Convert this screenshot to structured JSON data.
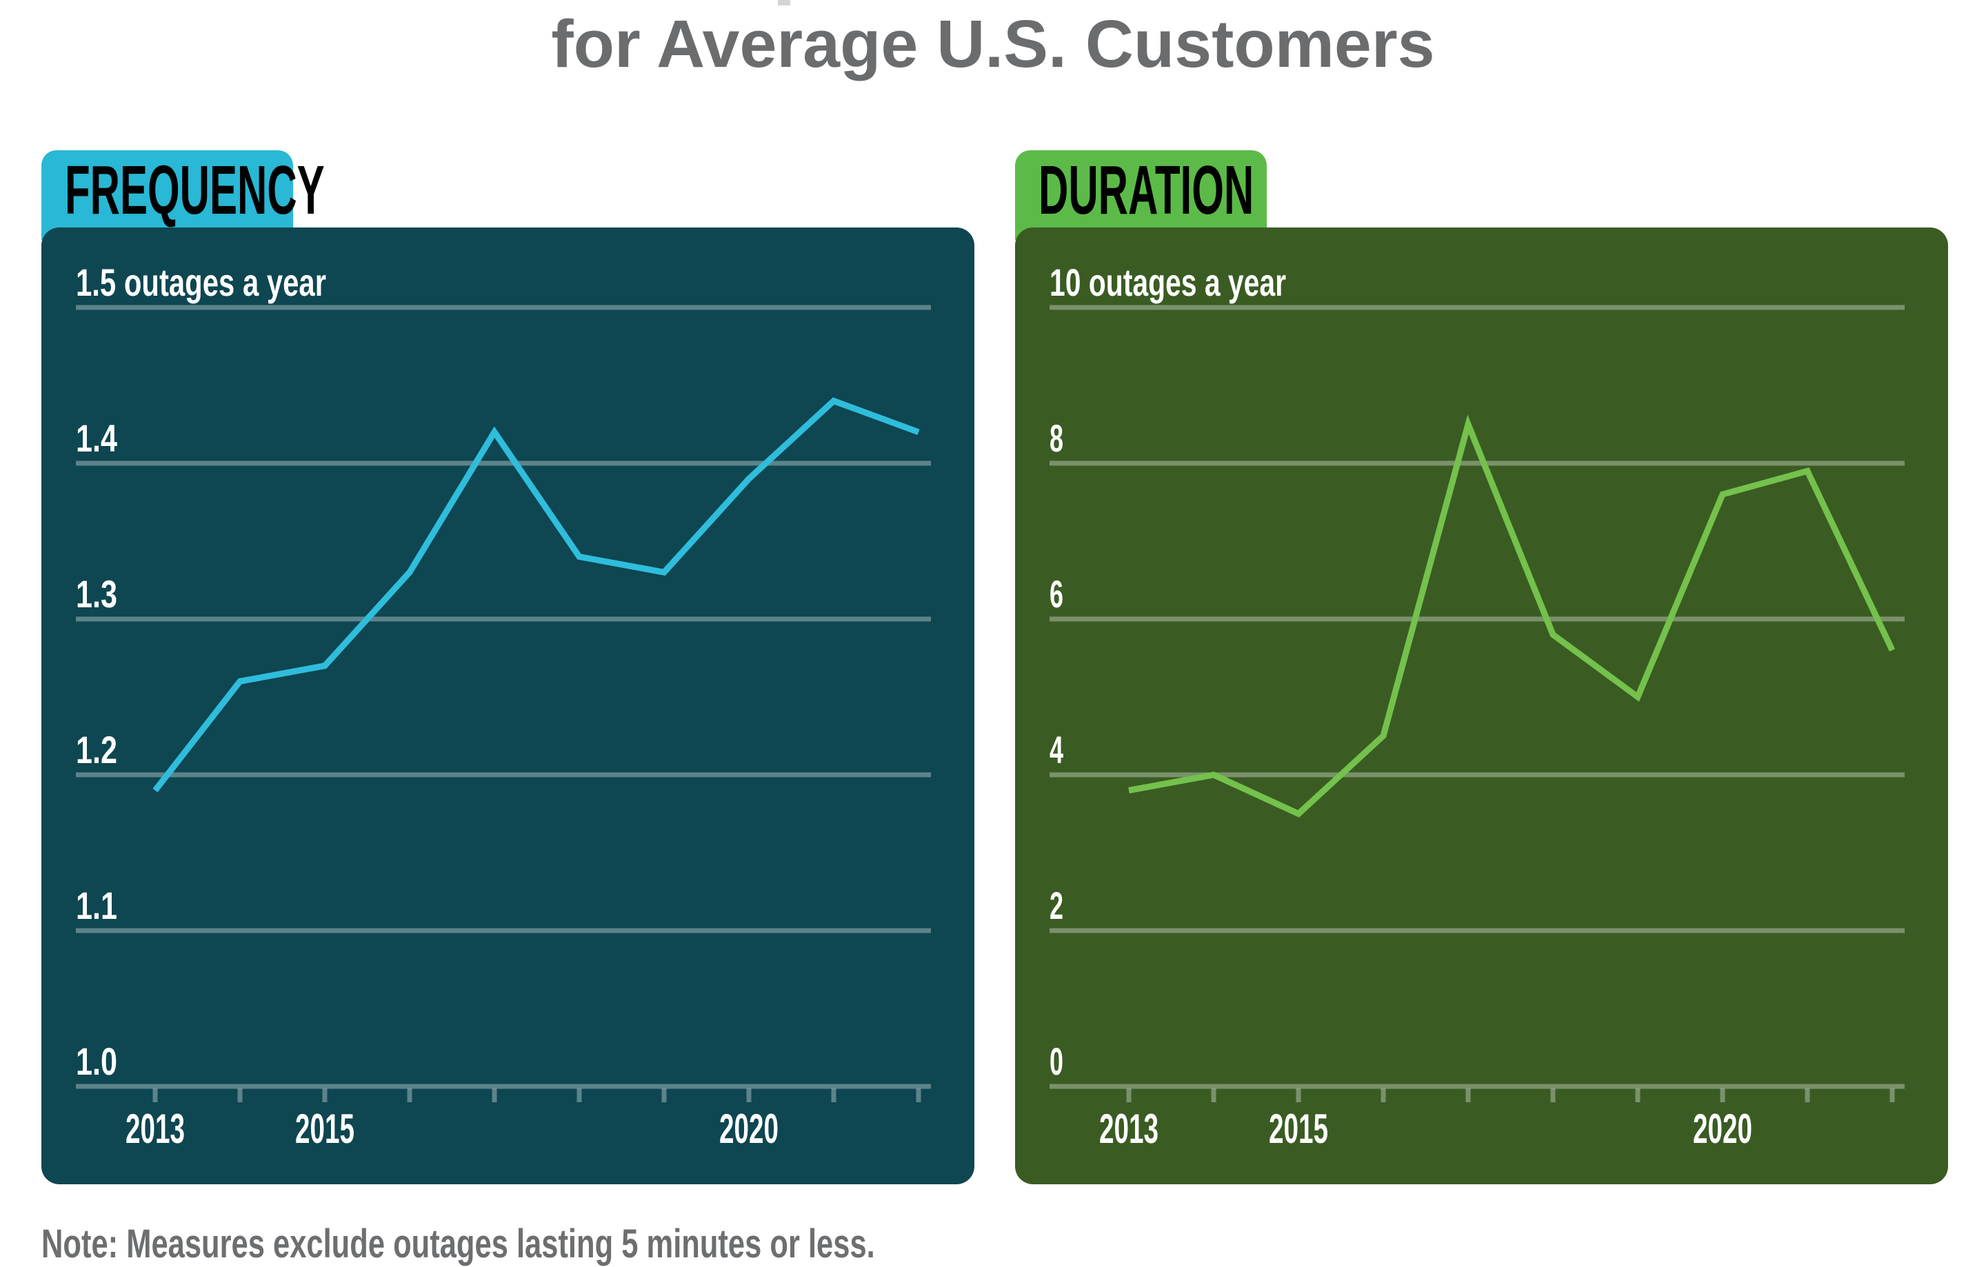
{
  "title": {
    "visible_line": "for Average U.S. Customers"
  },
  "note": "Note: Measures exclude outages lasting 5 minutes or less.",
  "colors": {
    "page_bg": "#ffffff",
    "title_text": "#6a6c6e",
    "note_text": "#6c6e70",
    "axis_text": "#ffffff",
    "tab_text": "#000000",
    "title_remnant": "#d4d4d4"
  },
  "chart_data": [
    {
      "id": "frequency",
      "type": "line",
      "tab_label": "FREQUENCY",
      "title": "Frequency of power outages for average U.S. customers",
      "x": [
        2013,
        2014,
        2015,
        2016,
        2017,
        2018,
        2019,
        2020,
        2021,
        2022
      ],
      "values": [
        1.19,
        1.26,
        1.27,
        1.33,
        1.42,
        1.34,
        1.33,
        1.39,
        1.44,
        1.42
      ],
      "ylabel": "outages a year",
      "ylim": [
        1.0,
        1.5
      ],
      "grid": "on",
      "legend": "none",
      "yticks": [
        {
          "value": 1.5,
          "label": "1.5 outages a year"
        },
        {
          "value": 1.4,
          "label": "1.4"
        },
        {
          "value": 1.3,
          "label": "1.3"
        },
        {
          "value": 1.2,
          "label": "1.2"
        },
        {
          "value": 1.1,
          "label": "1.1"
        },
        {
          "value": 1.0,
          "label": "1.0"
        }
      ],
      "x_labels": [
        {
          "year": 2013,
          "label": "2013"
        },
        {
          "year": 2015,
          "label": "2015"
        },
        {
          "year": 2020,
          "label": "2020"
        }
      ],
      "line_color": "#2fbddc",
      "panel_bg": "#0e4651",
      "tab_bg": "#29b8d5",
      "gridline_color": "rgba(255,255,255,0.33)"
    },
    {
      "id": "duration",
      "type": "line",
      "tab_label": "DURATION",
      "title": "Duration of power outages for average U.S. customers",
      "x": [
        2013,
        2014,
        2015,
        2016,
        2017,
        2018,
        2019,
        2020,
        2021,
        2022
      ],
      "values": [
        3.8,
        4.0,
        3.5,
        4.5,
        8.5,
        5.8,
        5.0,
        7.6,
        7.9,
        5.6
      ],
      "ylabel": "outages a year",
      "ylim": [
        0,
        10
      ],
      "grid": "on",
      "legend": "none",
      "yticks": [
        {
          "value": 10,
          "label": "10 outages a year"
        },
        {
          "value": 8,
          "label": "8"
        },
        {
          "value": 6,
          "label": "6"
        },
        {
          "value": 4,
          "label": "4"
        },
        {
          "value": 2,
          "label": "2"
        },
        {
          "value": 0,
          "label": "0"
        }
      ],
      "x_labels": [
        {
          "year": 2013,
          "label": "2013"
        },
        {
          "year": 2015,
          "label": "2015"
        },
        {
          "year": 2020,
          "label": "2020"
        }
      ],
      "line_color": "#74c14c",
      "panel_bg": "#3a5c23",
      "tab_bg": "#5cbb48",
      "gridline_color": "rgba(255,255,255,0.33)"
    }
  ]
}
